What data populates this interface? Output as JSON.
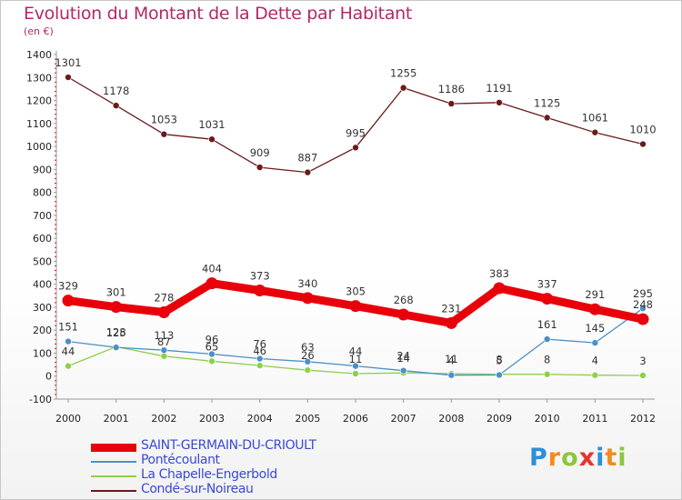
{
  "title": "Evolution du Montant de la Dette par Habitant",
  "subtitle": "(en €)",
  "brand": {
    "letters": [
      "P",
      "r",
      "o",
      "x",
      "i",
      "t",
      "i"
    ],
    "colors": [
      "#2e8fd8",
      "#f28b1e",
      "#8cc63f",
      "#e8322c",
      "#2e8fd8",
      "#f28b1e",
      "#8cc63f"
    ]
  },
  "chart_data": {
    "type": "line",
    "title": "Evolution du Montant de la Dette par Habitant",
    "unit": "(en €)",
    "x": [
      "2000",
      "2001",
      "2002",
      "2003",
      "2004",
      "2005",
      "2006",
      "2007",
      "2008",
      "2009",
      "2010",
      "2011",
      "2012"
    ],
    "ylim": [
      -100,
      1400
    ],
    "yticks": [
      "-100",
      "0",
      "100",
      "200",
      "300",
      "400",
      "500",
      "600",
      "700",
      "800",
      "900",
      "1000",
      "1100",
      "1200",
      "1300",
      "1400"
    ],
    "grid": false,
    "legend_position": "bottom-left",
    "series": [
      {
        "name": "SAINT-GERMAIN-DU-CRIOULT",
        "color": "#e8000b",
        "values": [
          329,
          301,
          278,
          404,
          373,
          340,
          305,
          268,
          231,
          383,
          337,
          291,
          248
        ],
        "labels": [
          "329",
          "301",
          "278",
          "404",
          "373",
          "340",
          "305",
          "268",
          "231",
          "383",
          "337",
          "291",
          "248"
        ]
      },
      {
        "name": "Pontécoulant",
        "color": "#4a90c8",
        "values": [
          151,
          125,
          113,
          96,
          76,
          63,
          44,
          24,
          4,
          5,
          161,
          145,
          295
        ],
        "labels": [
          "151",
          "125",
          "113",
          "96",
          "76",
          "63",
          "44",
          "24",
          "4",
          "5",
          "161",
          "145",
          "295"
        ]
      },
      {
        "name": "La Chapelle-Engerbold",
        "color": "#8ed04a",
        "values": [
          44,
          128,
          87,
          65,
          46,
          26,
          11,
          14,
          11,
          8,
          8,
          4,
          3
        ],
        "labels": [
          "44",
          "128",
          "87",
          "65",
          "46",
          "26",
          "11",
          "14",
          "11",
          "8",
          "8",
          "4",
          "3"
        ]
      },
      {
        "name": "Condé-sur-Noireau",
        "color": "#6b1a1a",
        "values": [
          1301,
          1178,
          1053,
          1031,
          909,
          887,
          995,
          1255,
          1186,
          1191,
          1125,
          1061,
          1010
        ],
        "labels": [
          "1301",
          "1178",
          "1053",
          "1031",
          "909",
          "887",
          "995",
          "1255",
          "1186",
          "1191",
          "1125",
          "1061",
          "1010"
        ]
      }
    ]
  }
}
